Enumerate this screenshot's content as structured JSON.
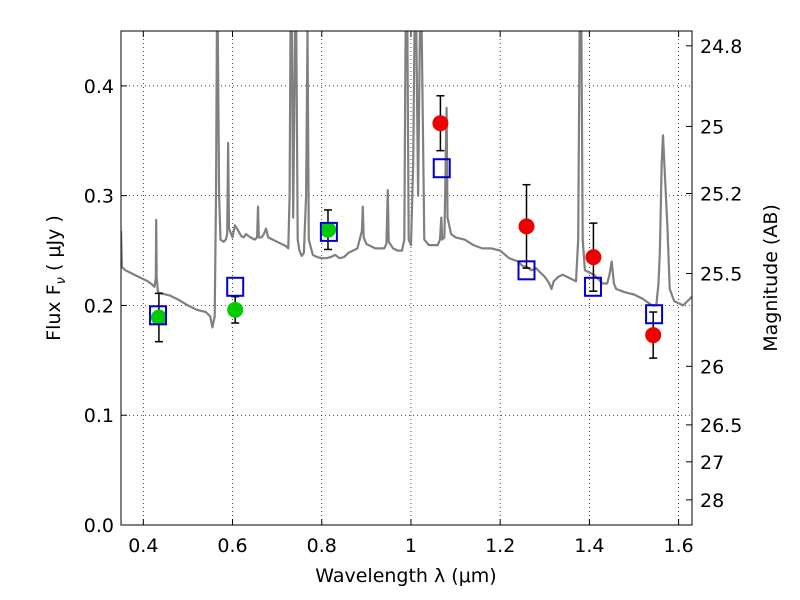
{
  "chart_data": {
    "type": "scatter",
    "xlabel": "Wavelength  λ (μm)",
    "ylabel": "Flux  F",
    "ylabel_sub": "ν",
    "ylabel_unit": "  ( μJy )",
    "y2label": "Magnitude (AB)",
    "xlim": [
      0.35,
      1.63
    ],
    "ylim": [
      0.0,
      0.45
    ],
    "grid": true,
    "x_ticks": [
      0.4,
      0.6,
      0.8,
      1.0,
      1.2,
      1.4,
      1.6
    ],
    "x_tick_labels": [
      "0.4",
      "0.6",
      "0.8",
      "1",
      "1.2",
      "1.4",
      "1.6"
    ],
    "y_ticks": [
      0.0,
      0.1,
      0.2,
      0.3,
      0.4
    ],
    "y_tick_labels": [
      "0.0",
      "0.1",
      "0.2",
      "0.3",
      "0.4"
    ],
    "y2_ticks": [
      24.8,
      25.0,
      25.2,
      25.5,
      26.0,
      26.5,
      27.0,
      28.0
    ],
    "y2_tick_labels": [
      "24.8",
      "25",
      "25.2",
      "25.5",
      "26",
      "26.5",
      "27",
      "28"
    ],
    "colors": {
      "spectrum": "#808080",
      "optical_points": "#00cc00",
      "ir_points": "#ee0000",
      "model_boxes": "#0000cc",
      "errorbar": "#000000"
    },
    "series": [
      {
        "kind": "model_spectrum",
        "points": [
          [
            0.35,
            0.268
          ],
          [
            0.352,
            0.235
          ],
          [
            0.36,
            0.232
          ],
          [
            0.37,
            0.23
          ],
          [
            0.38,
            0.228
          ],
          [
            0.39,
            0.226
          ],
          [
            0.4,
            0.224
          ],
          [
            0.41,
            0.222
          ],
          [
            0.42,
            0.219
          ],
          [
            0.425,
            0.217
          ],
          [
            0.428,
            0.225
          ],
          [
            0.429,
            0.278
          ],
          [
            0.43,
            0.225
          ],
          [
            0.433,
            0.212
          ],
          [
            0.44,
            0.211
          ],
          [
            0.46,
            0.209
          ],
          [
            0.48,
            0.205
          ],
          [
            0.5,
            0.2
          ],
          [
            0.52,
            0.196
          ],
          [
            0.54,
            0.194
          ],
          [
            0.55,
            0.19
          ],
          [
            0.555,
            0.18
          ],
          [
            0.56,
            0.19
          ],
          [
            0.563,
            0.3
          ],
          [
            0.565,
            0.45
          ],
          [
            0.567,
            0.45
          ],
          [
            0.57,
            0.3
          ],
          [
            0.573,
            0.26
          ],
          [
            0.58,
            0.258
          ],
          [
            0.585,
            0.26
          ],
          [
            0.588,
            0.265
          ],
          [
            0.59,
            0.348
          ],
          [
            0.592,
            0.27
          ],
          [
            0.6,
            0.262
          ],
          [
            0.605,
            0.273
          ],
          [
            0.61,
            0.27
          ],
          [
            0.62,
            0.263
          ],
          [
            0.625,
            0.262
          ],
          [
            0.63,
            0.265
          ],
          [
            0.64,
            0.262
          ],
          [
            0.65,
            0.26
          ],
          [
            0.655,
            0.262
          ],
          [
            0.657,
            0.29
          ],
          [
            0.659,
            0.262
          ],
          [
            0.665,
            0.262
          ],
          [
            0.67,
            0.265
          ],
          [
            0.675,
            0.27
          ],
          [
            0.68,
            0.262
          ],
          [
            0.69,
            0.26
          ],
          [
            0.7,
            0.258
          ],
          [
            0.71,
            0.256
          ],
          [
            0.72,
            0.254
          ],
          [
            0.725,
            0.252
          ],
          [
            0.728,
            0.3
          ],
          [
            0.73,
            0.45
          ],
          [
            0.733,
            0.45
          ],
          [
            0.736,
            0.28
          ],
          [
            0.74,
            0.45
          ],
          [
            0.743,
            0.45
          ],
          [
            0.746,
            0.26
          ],
          [
            0.75,
            0.25
          ],
          [
            0.755,
            0.245
          ],
          [
            0.76,
            0.248
          ],
          [
            0.765,
            0.3
          ],
          [
            0.768,
            0.45
          ],
          [
            0.771,
            0.26
          ],
          [
            0.78,
            0.246
          ],
          [
            0.79,
            0.244
          ],
          [
            0.8,
            0.243
          ],
          [
            0.81,
            0.243
          ],
          [
            0.82,
            0.244
          ],
          [
            0.83,
            0.246
          ],
          [
            0.84,
            0.243
          ],
          [
            0.85,
            0.244
          ],
          [
            0.86,
            0.248
          ],
          [
            0.87,
            0.25
          ],
          [
            0.88,
            0.252
          ],
          [
            0.89,
            0.268
          ],
          [
            0.892,
            0.29
          ],
          [
            0.894,
            0.262
          ],
          [
            0.9,
            0.256
          ],
          [
            0.91,
            0.254
          ],
          [
            0.92,
            0.252
          ],
          [
            0.93,
            0.252
          ],
          [
            0.94,
            0.252
          ],
          [
            0.945,
            0.256
          ],
          [
            0.948,
            0.305
          ],
          [
            0.95,
            0.258
          ],
          [
            0.96,
            0.252
          ],
          [
            0.97,
            0.25
          ],
          [
            0.98,
            0.25
          ],
          [
            0.985,
            0.26
          ],
          [
            0.988,
            0.45
          ],
          [
            0.992,
            0.45
          ],
          [
            0.995,
            0.26
          ],
          [
            1.0,
            0.255
          ],
          [
            1.005,
            0.33
          ],
          [
            1.008,
            0.45
          ],
          [
            1.012,
            0.45
          ],
          [
            1.016,
            0.3
          ],
          [
            1.02,
            0.45
          ],
          [
            1.024,
            0.45
          ],
          [
            1.03,
            0.26
          ],
          [
            1.04,
            0.255
          ],
          [
            1.05,
            0.255
          ],
          [
            1.06,
            0.255
          ],
          [
            1.065,
            0.26
          ],
          [
            1.068,
            0.28
          ],
          [
            1.07,
            0.26
          ],
          [
            1.075,
            0.262
          ],
          [
            1.08,
            0.38
          ],
          [
            1.082,
            0.28
          ],
          [
            1.09,
            0.265
          ],
          [
            1.1,
            0.262
          ],
          [
            1.12,
            0.26
          ],
          [
            1.14,
            0.255
          ],
          [
            1.16,
            0.252
          ],
          [
            1.18,
            0.252
          ],
          [
            1.2,
            0.25
          ],
          [
            1.22,
            0.243
          ],
          [
            1.24,
            0.24
          ],
          [
            1.25,
            0.236
          ],
          [
            1.26,
            0.235
          ],
          [
            1.27,
            0.232
          ],
          [
            1.28,
            0.234
          ],
          [
            1.29,
            0.23
          ],
          [
            1.3,
            0.226
          ],
          [
            1.31,
            0.22
          ],
          [
            1.315,
            0.215
          ],
          [
            1.32,
            0.222
          ],
          [
            1.33,
            0.226
          ],
          [
            1.34,
            0.228
          ],
          [
            1.35,
            0.226
          ],
          [
            1.36,
            0.224
          ],
          [
            1.37,
            0.222
          ],
          [
            1.375,
            0.26
          ],
          [
            1.378,
            0.45
          ],
          [
            1.382,
            0.45
          ],
          [
            1.385,
            0.26
          ],
          [
            1.39,
            0.232
          ],
          [
            1.4,
            0.23
          ],
          [
            1.41,
            0.228
          ],
          [
            1.42,
            0.224
          ],
          [
            1.43,
            0.22
          ],
          [
            1.44,
            0.22
          ],
          [
            1.445,
            0.228
          ],
          [
            1.45,
            0.24
          ],
          [
            1.455,
            0.22
          ],
          [
            1.46,
            0.215
          ],
          [
            1.48,
            0.212
          ],
          [
            1.5,
            0.21
          ],
          [
            1.52,
            0.206
          ],
          [
            1.54,
            0.2
          ],
          [
            1.55,
            0.2
          ],
          [
            1.555,
            0.22
          ],
          [
            1.558,
            0.25
          ],
          [
            1.562,
            0.33
          ],
          [
            1.565,
            0.355
          ],
          [
            1.568,
            0.33
          ],
          [
            1.575,
            0.27
          ],
          [
            1.58,
            0.215
          ],
          [
            1.59,
            0.204
          ],
          [
            1.6,
            0.202
          ],
          [
            1.61,
            0.2
          ],
          [
            1.62,
            0.204
          ],
          [
            1.63,
            0.208
          ]
        ]
      },
      {
        "kind": "observed_optical",
        "points": [
          {
            "x": 0.435,
            "y": 0.189,
            "err": 0.022
          },
          {
            "x": 0.606,
            "y": 0.196,
            "err": 0.012
          },
          {
            "x": 0.814,
            "y": 0.269,
            "err": 0.018
          }
        ]
      },
      {
        "kind": "observed_ir",
        "points": [
          {
            "x": 1.066,
            "y": 0.366,
            "err": 0.025
          },
          {
            "x": 1.259,
            "y": 0.272,
            "err": 0.038
          },
          {
            "x": 1.409,
            "y": 0.244,
            "err": 0.031
          },
          {
            "x": 1.543,
            "y": 0.173,
            "err": 0.021
          }
        ]
      },
      {
        "kind": "model_photometry",
        "points": [
          {
            "x": 0.433,
            "y": 0.191
          },
          {
            "x": 0.606,
            "y": 0.217
          },
          {
            "x": 0.816,
            "y": 0.267
          },
          {
            "x": 1.069,
            "y": 0.325
          },
          {
            "x": 1.259,
            "y": 0.232
          },
          {
            "x": 1.408,
            "y": 0.217
          },
          {
            "x": 1.545,
            "y": 0.192
          }
        ]
      }
    ]
  }
}
